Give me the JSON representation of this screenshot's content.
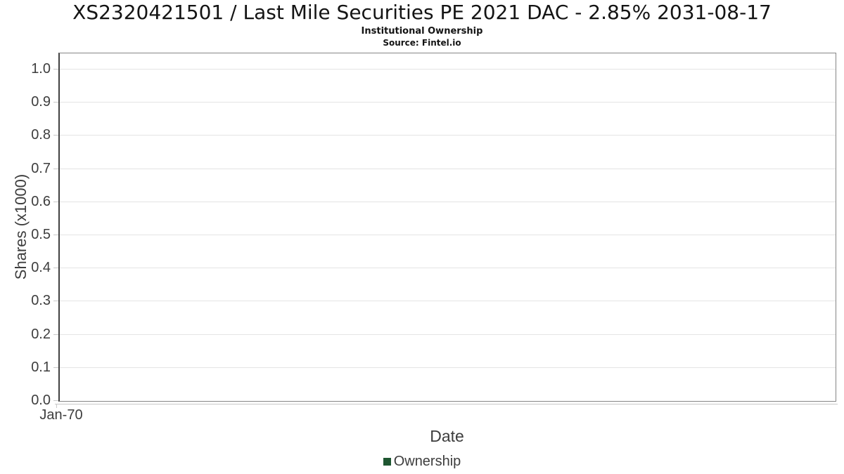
{
  "header": {
    "title": "XS2320421501 / Last Mile Securities PE 2021 DAC - 2.85% 2031-08-17",
    "subtitle": "Institutional Ownership",
    "source": "Source: Fintel.io"
  },
  "chart_data": {
    "type": "line",
    "title": "XS2320421501 / Last Mile Securities PE 2021 DAC - 2.85% 2031-08-17",
    "subtitle": "Institutional Ownership",
    "source": "Source: Fintel.io",
    "xlabel": "Date",
    "ylabel": "Shares (x1000)",
    "ylim": [
      0.0,
      1.05
    ],
    "grid": "horizontal-only",
    "y_ticks": [
      {
        "value": 0.0,
        "label": "0.0"
      },
      {
        "value": 0.1,
        "label": "0.1"
      },
      {
        "value": 0.2,
        "label": "0.2"
      },
      {
        "value": 0.3,
        "label": "0.3"
      },
      {
        "value": 0.4,
        "label": "0.4"
      },
      {
        "value": 0.5,
        "label": "0.5"
      },
      {
        "value": 0.6,
        "label": "0.6"
      },
      {
        "value": 0.7,
        "label": "0.7"
      },
      {
        "value": 0.8,
        "label": "0.8"
      },
      {
        "value": 0.9,
        "label": "0.9"
      },
      {
        "value": 1.0,
        "label": "1.0"
      }
    ],
    "x_ticks": [
      {
        "label": "Jan-70",
        "position_frac": 0.0
      }
    ],
    "legend": {
      "position": "bottom-center",
      "entries": [
        {
          "label": "Ownership",
          "color": "#1e5631"
        }
      ]
    },
    "series": [
      {
        "name": "Ownership",
        "color": "#1e5631",
        "x": [],
        "y": []
      }
    ]
  },
  "colors": {
    "plot_border": "#858585",
    "y_axis_line": "#424242",
    "x_axis_line": "#c8c8c8",
    "gridline": "#e4e4e4",
    "tick_text": "#3d3d3d",
    "title_text": "#141414",
    "legend_marker": "#1e5631",
    "background": "#ffffff"
  }
}
